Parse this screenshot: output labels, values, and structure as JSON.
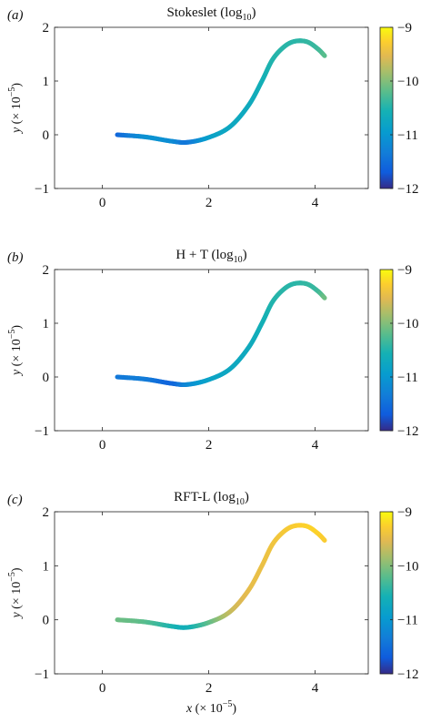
{
  "chart_data": [
    {
      "type": "line",
      "panel_label": "(a)",
      "title": {
        "main": "Stokeslet (log",
        "sub": "10",
        "close": ")"
      },
      "ylabel": {
        "var": "y",
        "mid": " (× 10",
        "sup": "−5",
        "close": ")"
      },
      "xlabel": null,
      "xlim": [
        -0.9,
        5
      ],
      "ylim": [
        -1,
        2
      ],
      "xticks": [
        0,
        2,
        4
      ],
      "xtick_labels": [
        "0",
        "2",
        "4"
      ],
      "yticks": [
        -1,
        0,
        1,
        2
      ],
      "ytick_labels": [
        "−1",
        "0",
        "1",
        "2"
      ],
      "grid": false,
      "colorbar": {
        "range": [
          -12,
          -9
        ],
        "ticks": [
          -12,
          -11,
          -10,
          -9
        ],
        "tick_labels": [
          "−12",
          "−11",
          "−10",
          "−9"
        ],
        "colormap": "parula"
      },
      "curve": {
        "x": [
          0.28,
          0.8,
          1.3,
          1.6,
          2.0,
          2.4,
          2.75,
          3.0,
          3.2,
          3.42,
          3.62,
          3.85,
          4.05,
          4.18
        ],
        "y": [
          0.0,
          -0.04,
          -0.12,
          -0.14,
          -0.05,
          0.15,
          0.55,
          1.0,
          1.4,
          1.64,
          1.74,
          1.73,
          1.6,
          1.47
        ],
        "color_value": [
          -11.6,
          -11.1,
          -11.15,
          -11.4,
          -10.9,
          -10.75,
          -10.7,
          -10.6,
          -10.5,
          -10.45,
          -10.45,
          -10.4,
          -10.35,
          -10.2
        ]
      }
    },
    {
      "type": "line",
      "panel_label": "(b)",
      "title": {
        "main": "H + T (log",
        "sub": "10",
        "close": ")"
      },
      "ylabel": {
        "var": "y",
        "mid": " (× 10",
        "sup": "−5",
        "close": ")"
      },
      "xlabel": null,
      "xlim": [
        -0.9,
        5
      ],
      "ylim": [
        -1,
        2
      ],
      "xticks": [
        0,
        2,
        4
      ],
      "xtick_labels": [
        "0",
        "2",
        "4"
      ],
      "yticks": [
        -1,
        0,
        1,
        2
      ],
      "ytick_labels": [
        "−1",
        "0",
        "1",
        "2"
      ],
      "grid": false,
      "colorbar": {
        "range": [
          -12,
          -9
        ],
        "ticks": [
          -12,
          -11,
          -10,
          -9
        ],
        "tick_labels": [
          "−12",
          "−11",
          "−10",
          "−9"
        ],
        "colormap": "parula"
      },
      "curve": {
        "x": [
          0.28,
          0.8,
          1.3,
          1.6,
          2.0,
          2.4,
          2.75,
          3.0,
          3.2,
          3.42,
          3.62,
          3.85,
          4.05,
          4.18
        ],
        "y": [
          0.0,
          -0.04,
          -0.12,
          -0.14,
          -0.05,
          0.15,
          0.55,
          1.0,
          1.4,
          1.64,
          1.74,
          1.73,
          1.6,
          1.47
        ],
        "color_value": [
          -11.4,
          -11.35,
          -11.6,
          -11.2,
          -10.85,
          -10.75,
          -10.7,
          -10.6,
          -10.5,
          -10.45,
          -10.45,
          -10.4,
          -10.35,
          -10.1
        ]
      }
    },
    {
      "type": "line",
      "panel_label": "(c)",
      "title": {
        "main": "RFT-L (log",
        "sub": "10",
        "close": ")"
      },
      "ylabel": {
        "var": "y",
        "mid": " (× 10",
        "sup": "−5",
        "close": ")"
      },
      "xlabel": {
        "var": "x",
        "mid": " (× 10",
        "sup": "−5",
        "close": ")"
      },
      "xlim": [
        -0.9,
        5
      ],
      "ylim": [
        -1,
        2
      ],
      "xticks": [
        0,
        2,
        4
      ],
      "xtick_labels": [
        "0",
        "2",
        "4"
      ],
      "yticks": [
        -1,
        0,
        1,
        2
      ],
      "ytick_labels": [
        "−1",
        "0",
        "1",
        "2"
      ],
      "grid": false,
      "colorbar": {
        "range": [
          -12,
          -9
        ],
        "ticks": [
          -12,
          -11,
          -10,
          -9
        ],
        "tick_labels": [
          "−12",
          "−11",
          "−10",
          "−9"
        ],
        "colormap": "parula"
      },
      "curve": {
        "x": [
          0.28,
          0.8,
          1.3,
          1.6,
          2.0,
          2.4,
          2.75,
          3.0,
          3.2,
          3.42,
          3.62,
          3.85,
          4.05,
          4.18
        ],
        "y": [
          0.0,
          -0.04,
          -0.12,
          -0.14,
          -0.05,
          0.15,
          0.55,
          1.0,
          1.4,
          1.64,
          1.74,
          1.73,
          1.6,
          1.47
        ],
        "color_value": [
          -10.1,
          -10.2,
          -10.5,
          -10.6,
          -10.2,
          -9.7,
          -9.5,
          -9.45,
          -9.4,
          -9.35,
          -9.3,
          -9.25,
          -9.25,
          -9.3
        ]
      }
    }
  ]
}
